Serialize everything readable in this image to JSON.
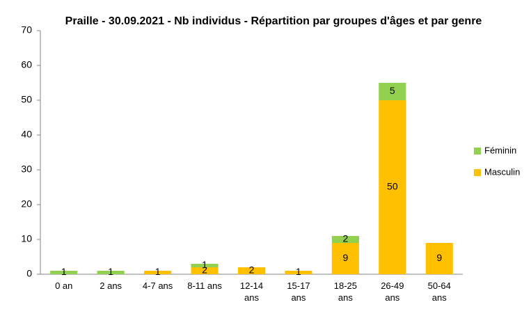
{
  "chart_data": {
    "type": "stacked_bar",
    "title": "Praille - 30.09.2021 - Nb individus - Répartition par groupes d'âges et par genre",
    "categories": [
      "0 an",
      "2 ans",
      "4-7 ans",
      "8-11 ans",
      "12-14\nans",
      "15-17\nans",
      "18-25\nans",
      "26-49\nans",
      "50-64\nans"
    ],
    "series": [
      {
        "name": "Masculin",
        "color": "#ffc000",
        "values": [
          0,
          0,
          1,
          2,
          2,
          1,
          9,
          50,
          9
        ]
      },
      {
        "name": "Féminin",
        "color": "#92d050",
        "values": [
          1,
          1,
          0,
          1,
          0,
          0,
          2,
          5,
          0
        ]
      }
    ],
    "ylim": [
      0,
      70
    ],
    "yticks": [
      0,
      10,
      20,
      30,
      40,
      50,
      60,
      70
    ],
    "grid": false,
    "legend": "right"
  }
}
